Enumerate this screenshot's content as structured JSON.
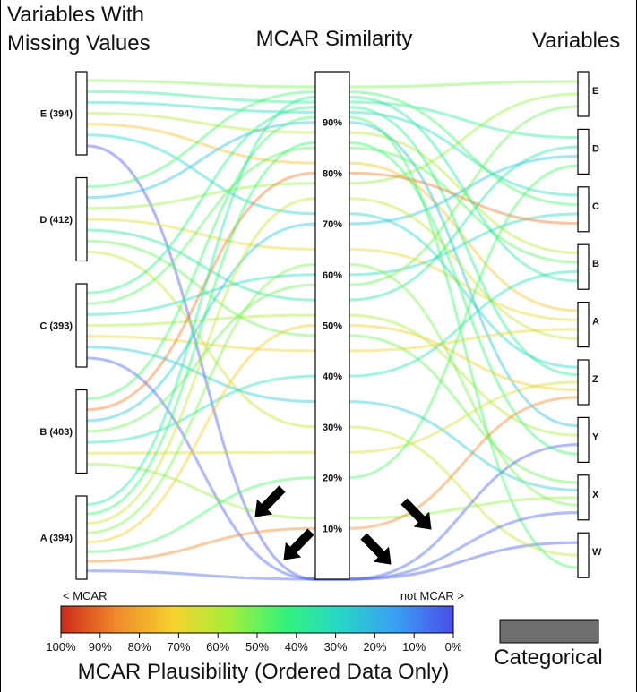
{
  "titles": {
    "left_line1": "Variables With",
    "left_line2": "Missing Values",
    "middle": "MCAR Similarity",
    "right": "Variables"
  },
  "chart_data": {
    "type": "parallel-sets",
    "left_axis": [
      {
        "label": "E (394)",
        "name": "E",
        "count": 394
      },
      {
        "label": "D (412)",
        "name": "D",
        "count": 412
      },
      {
        "label": "C (393)",
        "name": "C",
        "count": 393
      },
      {
        "label": "B (403)",
        "name": "B",
        "count": 403
      },
      {
        "label": "A (394)",
        "name": "A",
        "count": 394
      }
    ],
    "right_axis": [
      "E",
      "D",
      "C",
      "B",
      "A",
      "Z",
      "Y",
      "X",
      "W"
    ],
    "middle_axis_ticks": [
      "90%",
      "80%",
      "70%",
      "60%",
      "50%",
      "40%",
      "30%",
      "20%",
      "10%"
    ],
    "middle_axis_range": [
      0,
      100
    ],
    "colorbar": {
      "left_label": "< MCAR",
      "right_label": "not MCAR >",
      "ticks": [
        "100%",
        "90%",
        "80%",
        "70%",
        "60%",
        "50%",
        "40%",
        "30%",
        "20%",
        "10%",
        "0%"
      ],
      "title": "MCAR Plausibility (Ordered Data Only)",
      "colors": [
        "#cc2a1a",
        "#f08a2c",
        "#f5d22c",
        "#a6ee3c",
        "#33f37a",
        "#27d6c8",
        "#3a9df5",
        "#4a4ee8"
      ]
    },
    "categorical_legend": {
      "label": "Categorical",
      "color": "#6e6e6e"
    },
    "flows": [
      {
        "from": "E",
        "mcar": 97,
        "to": "E",
        "plaus": 0.52
      },
      {
        "from": "E",
        "mcar": 94,
        "to": "D",
        "plaus": 0.38
      },
      {
        "from": "E",
        "mcar": 92,
        "to": "C",
        "plaus": 0.3
      },
      {
        "from": "E",
        "mcar": 88,
        "to": "B",
        "plaus": 0.6
      },
      {
        "from": "E",
        "mcar": 82,
        "to": "A",
        "plaus": 0.75
      },
      {
        "from": "E",
        "mcar": 72,
        "to": "Z",
        "plaus": 0.28
      },
      {
        "from": "E",
        "mcar": 0,
        "to": "W",
        "plaus": 0.02
      },
      {
        "from": "D",
        "mcar": 96,
        "to": "C",
        "plaus": 0.45
      },
      {
        "from": "D",
        "mcar": 90,
        "to": "Y",
        "plaus": 0.22
      },
      {
        "from": "D",
        "mcar": 78,
        "to": "E",
        "plaus": 0.55
      },
      {
        "from": "D",
        "mcar": 65,
        "to": "A",
        "plaus": 0.68
      },
      {
        "from": "D",
        "mcar": 55,
        "to": "D",
        "plaus": 0.35
      },
      {
        "from": "D",
        "mcar": 48,
        "to": "X",
        "plaus": 0.5
      },
      {
        "from": "D",
        "mcar": 30,
        "to": "W",
        "plaus": 0.62
      },
      {
        "from": "C",
        "mcar": 93,
        "to": "Z",
        "plaus": 0.4
      },
      {
        "from": "C",
        "mcar": 85,
        "to": "B",
        "plaus": 0.48
      },
      {
        "from": "C",
        "mcar": 60,
        "to": "C",
        "plaus": 0.3
      },
      {
        "from": "C",
        "mcar": 52,
        "to": "Y",
        "plaus": 0.58
      },
      {
        "from": "C",
        "mcar": 45,
        "to": "A",
        "plaus": 0.7
      },
      {
        "from": "C",
        "mcar": 35,
        "to": "X",
        "plaus": 0.25
      },
      {
        "from": "C",
        "mcar": 0,
        "to": "Y",
        "plaus": 0.03
      },
      {
        "from": "B",
        "mcar": 91,
        "to": "W",
        "plaus": 0.45
      },
      {
        "from": "B",
        "mcar": 80,
        "to": "C",
        "plaus": 0.88
      },
      {
        "from": "B",
        "mcar": 70,
        "to": "D",
        "plaus": 0.24
      },
      {
        "from": "B",
        "mcar": 58,
        "to": "E",
        "plaus": 0.5
      },
      {
        "from": "B",
        "mcar": 40,
        "to": "B",
        "plaus": 0.32
      },
      {
        "from": "B",
        "mcar": 25,
        "to": "Z",
        "plaus": 0.66
      },
      {
        "from": "B",
        "mcar": 12,
        "to": "X",
        "plaus": 0.55
      },
      {
        "from": "A",
        "mcar": 95,
        "to": "B",
        "plaus": 0.36
      },
      {
        "from": "A",
        "mcar": 86,
        "to": "Y",
        "plaus": 0.44
      },
      {
        "from": "A",
        "mcar": 75,
        "to": "A",
        "plaus": 0.62
      },
      {
        "from": "A",
        "mcar": 62,
        "to": "X",
        "plaus": 0.52
      },
      {
        "from": "A",
        "mcar": 50,
        "to": "Z",
        "plaus": 0.73
      },
      {
        "from": "A",
        "mcar": 20,
        "to": "D",
        "plaus": 0.46
      },
      {
        "from": "A",
        "mcar": 10,
        "to": "Z",
        "plaus": 0.86
      },
      {
        "from": "A",
        "mcar": 0,
        "to": "X",
        "plaus": 0.04
      }
    ]
  }
}
